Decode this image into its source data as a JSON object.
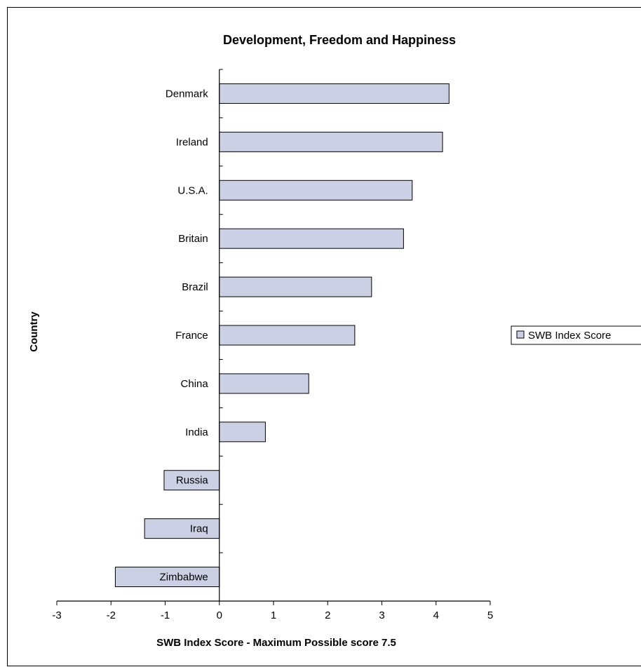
{
  "chart_data": {
    "type": "bar",
    "orientation": "horizontal",
    "title": "Development, Freedom and Happiness",
    "xlabel": "SWB Index Score - Maximum Possible score 7.5",
    "ylabel": "Country",
    "categories": [
      "Denmark",
      "Ireland",
      "U.S.A.",
      "Britain",
      "Brazil",
      "France",
      "China",
      "India",
      "Russia",
      "Iraq",
      "Zimbabwe"
    ],
    "series": [
      {
        "name": "SWB Index Score",
        "values": [
          4.24,
          4.12,
          3.56,
          3.4,
          2.81,
          2.5,
          1.65,
          0.85,
          -1.02,
          -1.38,
          -1.92
        ],
        "color": "#ccd0e4"
      }
    ],
    "xlim": [
      -3,
      5
    ],
    "xticks": [
      "-3",
      "-2",
      "-1",
      "0",
      "1",
      "2",
      "3",
      "4",
      "5"
    ],
    "grid": false,
    "legend": "right"
  }
}
